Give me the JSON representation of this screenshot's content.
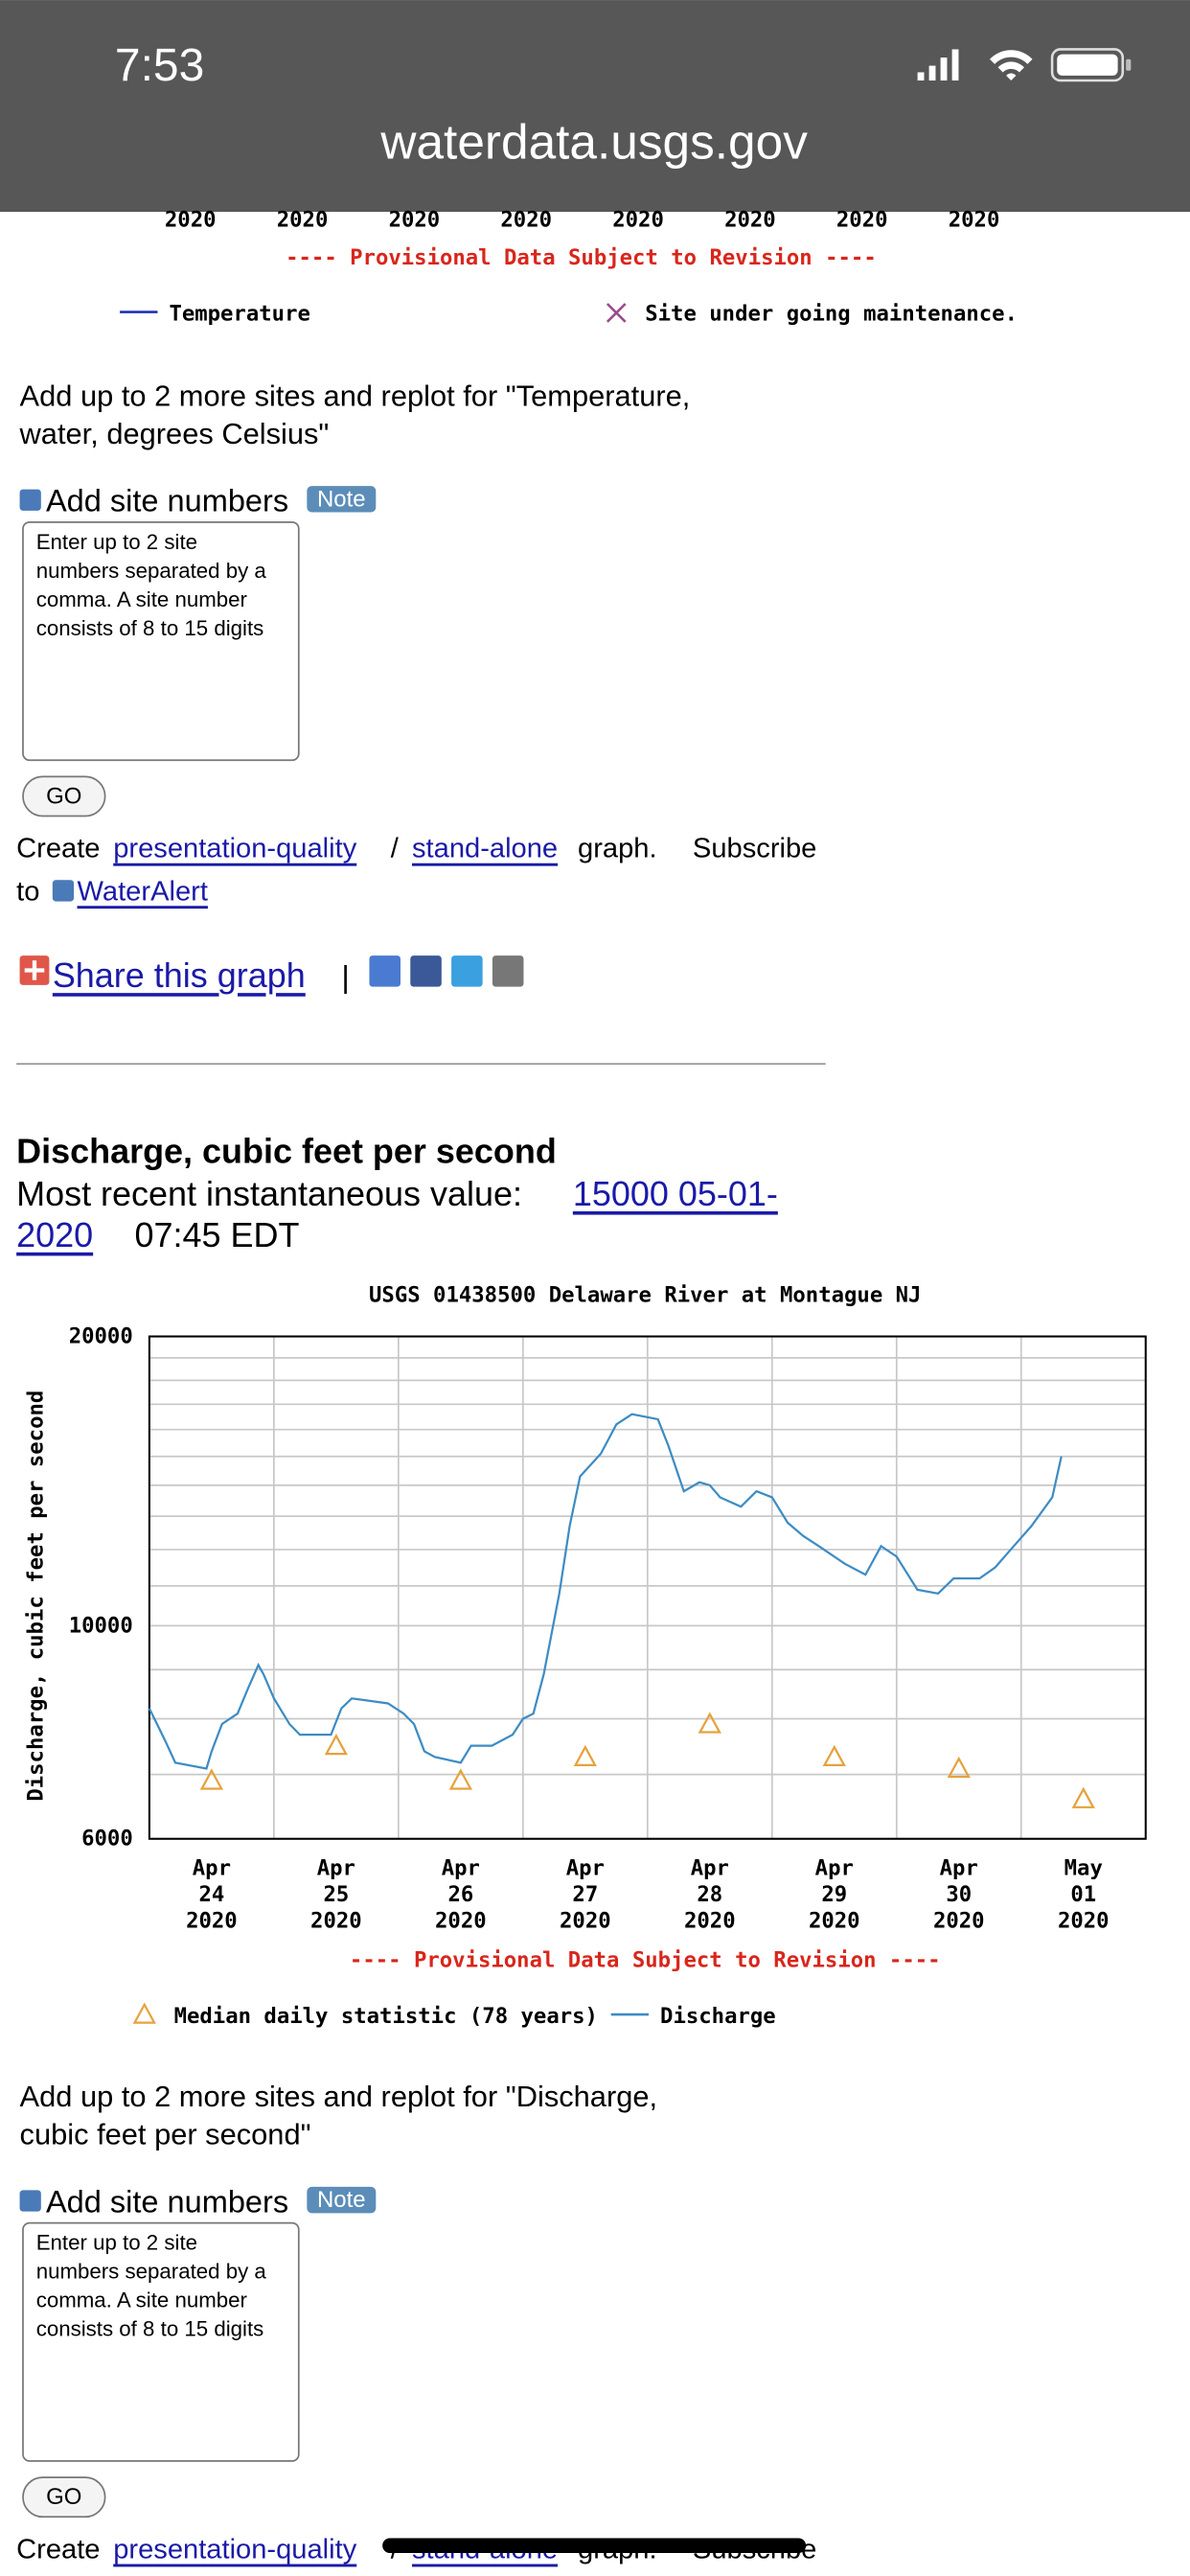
{
  "status_bar": {
    "time": "7:53",
    "url": "waterdata.usgs.gov"
  },
  "temperature_chart": {
    "x_years": [
      "2020",
      "2020",
      "2020",
      "2020",
      "2020",
      "2020",
      "2020",
      "2020"
    ],
    "note": "---- Provisional Data Subject to Revision ----",
    "legend": [
      "Temperature",
      "Site under going maintenance."
    ]
  },
  "replot_sections": [
    {
      "lines": [
        "Add up to 2 more sites and replot for \"Temperature,",
        "water, degrees Celsius\""
      ],
      "add_site_label": "Add site numbers",
      "note_badge": "Note",
      "placeholder_lines": [
        "Enter up to 2 site",
        "numbers separated by a",
        "comma. A site number",
        "consists of 8 to 15 digits"
      ],
      "go_button": "GO",
      "create_text": "Create",
      "presentation_link": "presentation-quality",
      "slash": "/",
      "standalone_link": "stand-alone",
      "graph_text": "graph.",
      "subscribe_text": "Subscribe",
      "to_text": "to",
      "wateralert_link": "WaterAlert",
      "share_link": "Share this graph",
      "separator": "|"
    },
    {
      "lines": [
        "Add up to 2 more sites and replot for \"Discharge,",
        "cubic feet per second\""
      ],
      "add_site_label": "Add site numbers",
      "note_badge": "Note",
      "placeholder_lines": [
        "Enter up to 2 site",
        "numbers separated by a",
        "comma. A site number",
        "consists of 8 to 15 digits"
      ],
      "go_button": "GO",
      "create_text": "Create",
      "presentation_link": "presentation-quality",
      "slash": "/",
      "standalone_link": "stand-alone",
      "graph_text": "graph.",
      "subscribe_text": "Subscribe"
    }
  ],
  "discharge": {
    "heading": "Discharge, cubic feet per second",
    "recent_label": "Most recent instantaneous value:",
    "recent_link_lines": [
      "15000 05-01-",
      "2020"
    ],
    "recent_time": "07:45 EDT"
  },
  "chart_data": {
    "type": "line",
    "title": "USGS 01438500 Delaware River at Montague NJ",
    "y_label": "Discharge, cubic feet per second",
    "log_y": true,
    "ylim": [
      6000,
      20000
    ],
    "yticks": [
      6000,
      10000,
      20000
    ],
    "y_minor_grid": [
      7000,
      8000,
      9000,
      11000,
      12000,
      13000,
      14000,
      15000,
      16000,
      17000,
      18000,
      19000
    ],
    "xlim": [
      "2020-04-24T00:00",
      "2020-05-02T00:00"
    ],
    "x_grid": [
      "2020-04-25T00:00",
      "2020-04-26T00:00",
      "2020-04-27T00:00",
      "2020-04-28T00:00",
      "2020-04-29T00:00",
      "2020-04-30T00:00",
      "2020-05-01T00:00"
    ],
    "xticks": [
      {
        "value": "2020-04-24T12:00",
        "label": [
          "Apr",
          "24",
          "2020"
        ]
      },
      {
        "value": "2020-04-25T12:00",
        "label": [
          "Apr",
          "25",
          "2020"
        ]
      },
      {
        "value": "2020-04-26T12:00",
        "label": [
          "Apr",
          "26",
          "2020"
        ]
      },
      {
        "value": "2020-04-27T12:00",
        "label": [
          "Apr",
          "27",
          "2020"
        ]
      },
      {
        "value": "2020-04-28T12:00",
        "label": [
          "Apr",
          "28",
          "2020"
        ]
      },
      {
        "value": "2020-04-29T12:00",
        "label": [
          "Apr",
          "29",
          "2020"
        ]
      },
      {
        "value": "2020-04-30T12:00",
        "label": [
          "Apr",
          "30",
          "2020"
        ]
      },
      {
        "value": "2020-05-01T12:00",
        "label": [
          "May",
          "01",
          "2020"
        ]
      }
    ],
    "note": "---- Provisional Data Subject to Revision ----",
    "grid": true,
    "series": [
      {
        "name": "Median daily statistic (78 years)",
        "color": "#e6a23c",
        "mark": "triangle",
        "x": [
          "2020-04-24T12:00",
          "2020-04-25T12:00",
          "2020-04-26T12:00",
          "2020-04-27T12:00",
          "2020-04-28T12:00",
          "2020-04-29T12:00",
          "2020-04-30T12:00",
          "2020-05-01T12:00"
        ],
        "values": [
          6900,
          7500,
          6900,
          7300,
          7900,
          7300,
          7100,
          6600
        ]
      },
      {
        "name": "Discharge",
        "color": "#3d8cc4",
        "mark": "line",
        "x": [
          "2020-04-24T00:00",
          "2020-04-24T03:00",
          "2020-04-24T05:00",
          "2020-04-24T11:00",
          "2020-04-24T12:00",
          "2020-04-24T14:00",
          "2020-04-24T17:00",
          "2020-04-24T19:00",
          "2020-04-24T21:00",
          "2020-04-24T22:00",
          "2020-04-25T00:00",
          "2020-04-25T03:00",
          "2020-04-25T05:00",
          "2020-04-25T11:00",
          "2020-04-25T13:00",
          "2020-04-25T15:00",
          "2020-04-25T22:00",
          "2020-04-26T01:00",
          "2020-04-26T03:00",
          "2020-04-26T05:00",
          "2020-04-26T07:00",
          "2020-04-26T12:00",
          "2020-04-26T14:00",
          "2020-04-26T18:00",
          "2020-04-26T22:00",
          "2020-04-27T00:00",
          "2020-04-27T02:00",
          "2020-04-27T04:00",
          "2020-04-27T07:00",
          "2020-04-27T09:00",
          "2020-04-27T11:00",
          "2020-04-27T15:00",
          "2020-04-27T18:00",
          "2020-04-27T21:00",
          "2020-04-28T02:00",
          "2020-04-28T04:00",
          "2020-04-28T07:00",
          "2020-04-28T10:00",
          "2020-04-28T12:00",
          "2020-04-28T14:00",
          "2020-04-28T18:00",
          "2020-04-28T21:00",
          "2020-04-29T00:00",
          "2020-04-29T03:00",
          "2020-04-29T06:00",
          "2020-04-29T09:00",
          "2020-04-29T14:00",
          "2020-04-29T18:00",
          "2020-04-29T21:00",
          "2020-04-30T00:00",
          "2020-04-30T04:00",
          "2020-04-30T08:00",
          "2020-04-30T11:00",
          "2020-04-30T16:00",
          "2020-04-30T19:00",
          "2020-04-30T22:00",
          "2020-05-01T02:00",
          "2020-05-01T06:00",
          "2020-05-01T07:45"
        ],
        "values": [
          8200,
          7600,
          7200,
          7100,
          7400,
          7900,
          8100,
          8600,
          9100,
          8900,
          8400,
          7900,
          7700,
          7700,
          8200,
          8400,
          8300,
          8100,
          7900,
          7400,
          7300,
          7200,
          7500,
          7500,
          7700,
          8000,
          8100,
          8900,
          10800,
          12700,
          14300,
          15100,
          16200,
          16600,
          16400,
          15400,
          13800,
          14100,
          14000,
          13600,
          13300,
          13800,
          13600,
          12800,
          12400,
          12100,
          11600,
          11300,
          12100,
          11800,
          10900,
          10800,
          11200,
          11200,
          11500,
          12000,
          12700,
          13600,
          15000
        ]
      }
    ]
  }
}
